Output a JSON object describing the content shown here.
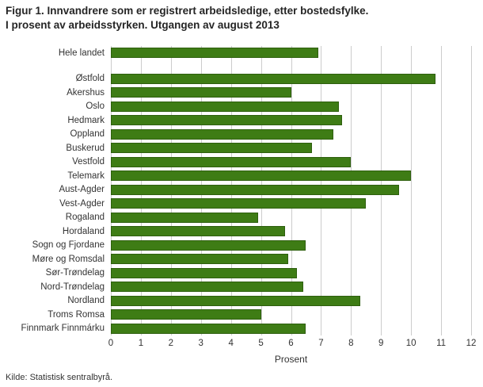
{
  "title": {
    "line1": "Figur 1. Innvandrere som er registrert arbeidsledige, etter bostedsfylke.",
    "line2": "I prosent av arbeidsstyrken. Utgangen av august 2013"
  },
  "source": "Kilde: Statistisk sentralbyrå.",
  "colors": {
    "bar": "#3e7c15",
    "bar_border": "#2e5f0e",
    "grid": "#cccccc",
    "text": "#333333",
    "title_text": "#252525"
  },
  "chart_data": {
    "type": "bar",
    "orientation": "horizontal",
    "title": "Figur 1. Innvandrere som er registrert arbeidsledige, etter bostedsfylke. I prosent av arbeidsstyrken. Utgangen av august 2013",
    "xlabel": "Prosent",
    "xlim": [
      0,
      12
    ],
    "xticks": [
      0,
      1,
      2,
      3,
      4,
      5,
      6,
      7,
      8,
      9,
      10,
      11,
      12
    ],
    "grid": true,
    "legend": "none",
    "gap_after_index": 0,
    "categories": [
      "Hele landet",
      "Østfold",
      "Akershus",
      "Oslo",
      "Hedmark",
      "Oppland",
      "Buskerud",
      "Vestfold",
      "Telemark",
      "Aust-Agder",
      "Vest-Agder",
      "Rogaland",
      "Hordaland",
      "Sogn og Fjordane",
      "Møre og Romsdal",
      "Sør-Trøndelag",
      "Nord-Trøndelag",
      "Nordland",
      "Troms Romsa",
      "Finnmark Finnmárku"
    ],
    "values": [
      6.9,
      10.8,
      6.0,
      7.6,
      7.7,
      7.4,
      6.7,
      8.0,
      10.0,
      9.6,
      8.5,
      4.9,
      5.8,
      6.5,
      5.9,
      6.2,
      6.4,
      8.3,
      5.0,
      6.5
    ]
  }
}
